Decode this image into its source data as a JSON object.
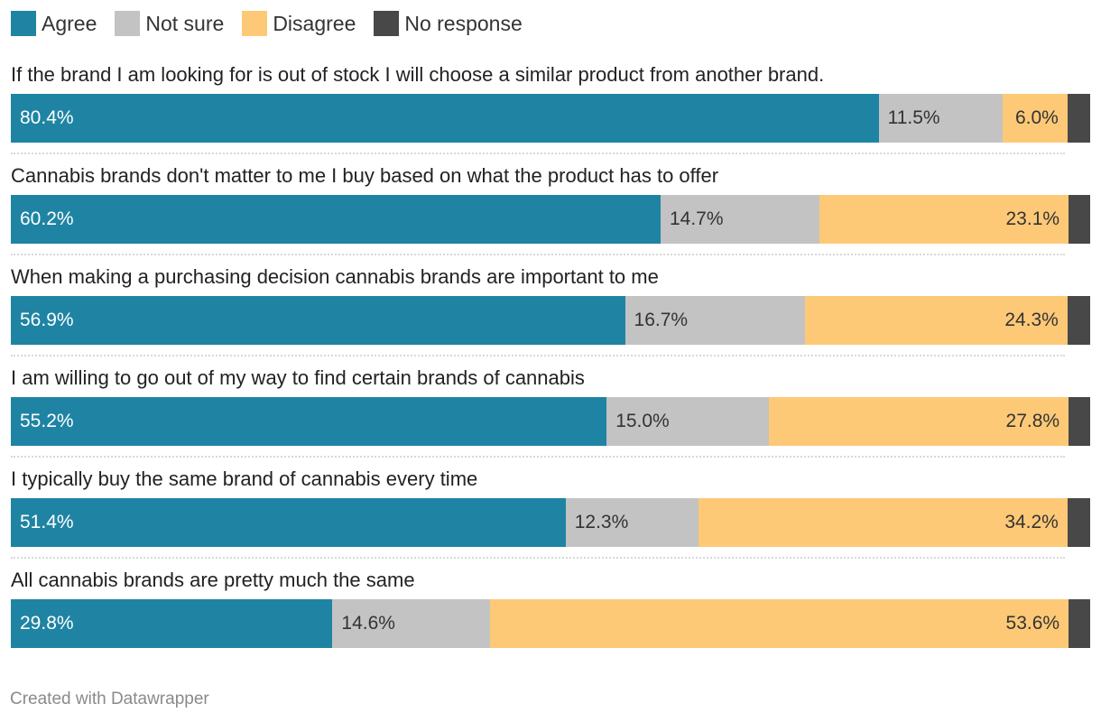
{
  "chart_data": {
    "type": "bar",
    "orientation": "horizontal",
    "stacked": true,
    "legend_position": "top-left",
    "categories": [
      "If the brand I am looking for is out of stock I will choose a similar product from another brand.",
      "Cannabis brands don't matter to me I buy based on what the product has to offer",
      "When making a purchasing decision cannabis brands are important to me",
      "I am willing to go out of my way to find certain brands of cannabis",
      "I typically buy the same brand of cannabis every time",
      "All cannabis brands are pretty much the same"
    ],
    "series": [
      {
        "name": "Agree",
        "color": "#1f84a3",
        "text_color": "#ffffff",
        "values": [
          80.4,
          60.2,
          56.9,
          55.2,
          51.4,
          29.8
        ],
        "labels": [
          "80.4%",
          "60.2%",
          "56.9%",
          "55.2%",
          "51.4%",
          "29.8%"
        ]
      },
      {
        "name": "Not sure",
        "color": "#c3c3c3",
        "text_color": "#333333",
        "values": [
          11.5,
          14.7,
          16.7,
          15.0,
          12.3,
          14.6
        ],
        "labels": [
          "11.5%",
          "14.7%",
          "16.7%",
          "15.0%",
          "12.3%",
          "14.6%"
        ]
      },
      {
        "name": "Disagree",
        "color": "#fec977",
        "text_color": "#333333",
        "values": [
          6.0,
          23.1,
          24.3,
          27.8,
          34.2,
          53.6
        ],
        "labels": [
          "6.0%",
          "23.1%",
          "24.3%",
          "27.8%",
          "34.2%",
          "53.6%"
        ]
      },
      {
        "name": "No response",
        "color": "#484848",
        "text_color": "#ffffff",
        "values": [
          2.1,
          2.0,
          2.1,
          2.0,
          2.1,
          2.0
        ],
        "labels": [
          "",
          "",
          "",
          "",
          "",
          ""
        ]
      }
    ],
    "xlim": [
      0,
      100
    ]
  },
  "footer": {
    "credit": "Created with Datawrapper"
  }
}
